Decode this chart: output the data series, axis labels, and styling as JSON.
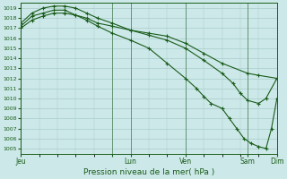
{
  "xlabel": "Pression niveau de la mer( hPa )",
  "ylim": [
    1004.5,
    1019.5
  ],
  "yticks": [
    1005,
    1006,
    1007,
    1008,
    1009,
    1010,
    1011,
    1012,
    1013,
    1014,
    1015,
    1016,
    1017,
    1018,
    1019
  ],
  "xlim": [
    0,
    7
  ],
  "xtick_positions": [
    0,
    2.5,
    3.0,
    4.5,
    6.2,
    7.0
  ],
  "xtick_labels": [
    "Jeu",
    "",
    "Lun",
    "Ven",
    "Sam",
    "Dim"
  ],
  "vline_positions": [
    0,
    2.5,
    3.0,
    4.5,
    6.2,
    7.0
  ],
  "bg_color": "#cce8e8",
  "grid_color": "#aacccc",
  "line_color": "#1a5c1a",
  "line1_x": [
    0,
    0.3,
    0.6,
    0.9,
    1.2,
    1.5,
    1.8,
    2.1,
    2.5,
    3.0,
    3.5,
    4.0,
    4.5,
    5.0,
    5.5,
    6.2,
    6.5,
    7.0
  ],
  "line1_y": [
    1017.0,
    1017.8,
    1018.2,
    1018.5,
    1018.5,
    1018.3,
    1018.0,
    1017.5,
    1017.2,
    1016.8,
    1016.5,
    1016.2,
    1015.5,
    1014.5,
    1013.5,
    1012.5,
    1012.3,
    1012.0
  ],
  "line2_x": [
    0,
    0.3,
    0.6,
    0.9,
    1.2,
    1.5,
    1.8,
    2.1,
    2.5,
    3.0,
    3.5,
    4.0,
    4.5,
    5.0,
    5.5,
    5.8,
    6.0,
    6.2,
    6.5,
    6.7,
    7.0
  ],
  "line2_y": [
    1017.5,
    1018.5,
    1019.0,
    1019.2,
    1019.2,
    1019.0,
    1018.5,
    1018.0,
    1017.5,
    1016.8,
    1016.3,
    1015.8,
    1015.0,
    1013.8,
    1012.5,
    1011.5,
    1010.5,
    1009.8,
    1009.5,
    1010.0,
    1012.0
  ],
  "line3_x": [
    0,
    0.3,
    0.6,
    0.9,
    1.2,
    1.5,
    1.8,
    2.1,
    2.5,
    3.0,
    3.5,
    4.0,
    4.5,
    4.8,
    5.0,
    5.2,
    5.5,
    5.7,
    5.9,
    6.1,
    6.3,
    6.5,
    6.7,
    6.85,
    7.0
  ],
  "line3_y": [
    1017.2,
    1018.2,
    1018.5,
    1018.8,
    1018.8,
    1018.3,
    1017.8,
    1017.2,
    1016.5,
    1015.8,
    1015.0,
    1013.5,
    1012.0,
    1011.0,
    1010.2,
    1009.5,
    1009.0,
    1008.0,
    1007.0,
    1006.0,
    1005.5,
    1005.2,
    1005.0,
    1007.0,
    1010.0
  ]
}
